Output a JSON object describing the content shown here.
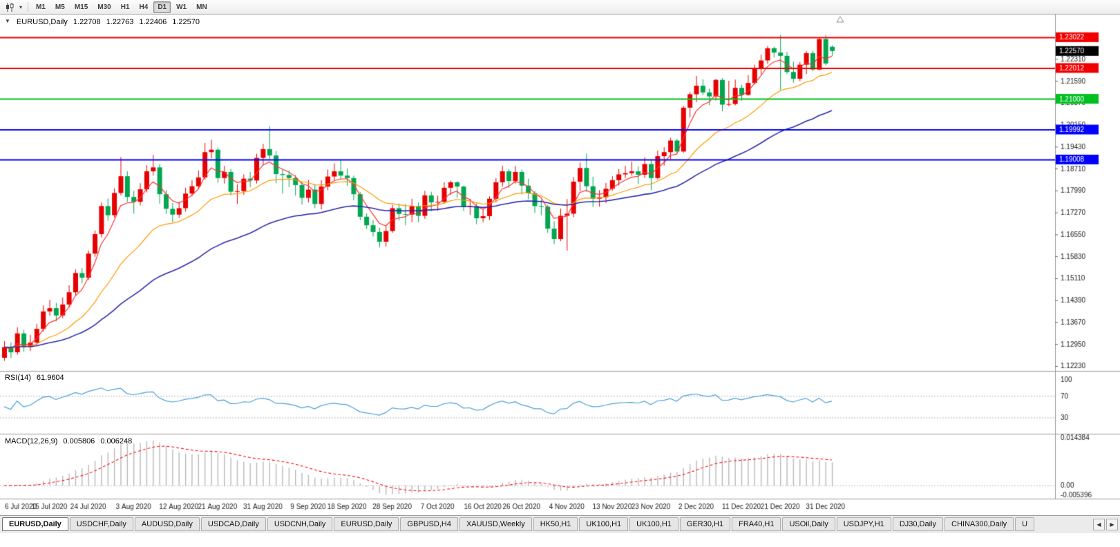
{
  "toolbar": {
    "timeframes": [
      "M1",
      "M5",
      "M15",
      "M30",
      "H1",
      "H4",
      "D1",
      "W1",
      "MN"
    ],
    "active_timeframe": "D1",
    "dropdown_caret": "▾"
  },
  "chart_header": {
    "collapse_icon": "▼",
    "symbol": "EURUSD,Daily",
    "open": "1.22708",
    "high": "1.22763",
    "low": "1.22406",
    "close": "1.22570"
  },
  "rsi_header": {
    "name": "RSI(14)",
    "value": "61.9604"
  },
  "macd_header": {
    "name": "MACD(12,26,9)",
    "value1": "0.005806",
    "value2": "0.006248"
  },
  "tab_bar": {
    "tabs": [
      "EURUSD,Daily",
      "USDCHF,Daily",
      "AUDUSD,Daily",
      "USDCAD,Daily",
      "USDCNH,Daily",
      "EURUSD,Daily",
      "GBPUSD,H4",
      "XAUUSD,Weekly",
      "HK50,H1",
      "UK100,H1",
      "UK100,H1",
      "GER30,H1",
      "FRA40,H1",
      "USOil,Daily",
      "USDJPY,H1",
      "DJ30,Daily",
      "CHINA300,Daily",
      "U"
    ],
    "active_tab_index": 0,
    "scroll_left": "◀",
    "scroll_right": "▶"
  },
  "chart_data": {
    "type": "candlestick",
    "symbol": "EURUSD",
    "timeframe": "Daily",
    "quote": {
      "open": 1.22708,
      "high": 1.22763,
      "low": 1.22406,
      "close": 1.2257
    },
    "current_price_label": "1.22570",
    "price_range": [
      1.1207,
      1.237
    ],
    "y_ticks": [
      "1.22310",
      "1.21590",
      "1.20870",
      "1.20150",
      "1.19430",
      "1.18710",
      "1.17990",
      "1.17270",
      "1.16550",
      "1.15830",
      "1.15110",
      "1.14390",
      "1.13670",
      "1.12950",
      "1.12230"
    ],
    "x_ticks": [
      "6 Jul 2020",
      "15 Jul 2020",
      "24 Jul 2020",
      "3 Aug 2020",
      "12 Aug 2020",
      "21 Aug 2020",
      "31 Aug 2020",
      "9 Sep 2020",
      "18 Sep 2020",
      "28 Sep 2020",
      "7 Oct 2020",
      "16 Oct 2020",
      "26 Oct 2020",
      "4 Nov 2020",
      "13 Nov 2020",
      "23 Nov 2020",
      "2 Dec 2020",
      "11 Dec 2020",
      "21 Dec 2020",
      "31 Dec 2020"
    ],
    "levels": [
      {
        "value": 1.23022,
        "label": "1.23022",
        "color": "#f20000"
      },
      {
        "value": 1.22012,
        "label": "1.22012",
        "color": "#f20000"
      },
      {
        "value": 1.21,
        "label": "1.21000",
        "color": "#00c020"
      },
      {
        "value": 1.19992,
        "label": "1.19992",
        "color": "#0000ff"
      },
      {
        "value": 1.19008,
        "label": "1.19008",
        "color": "#0000ff"
      }
    ],
    "candle_colors": {
      "up": "#e60000",
      "down": "#00a650"
    },
    "moving_averages": [
      {
        "period": 5,
        "color": "#ff3030"
      },
      {
        "period": 18,
        "color": "#ff9900"
      },
      {
        "period": 45,
        "color": "#2a2ab0"
      }
    ],
    "rsi": {
      "period": 14,
      "value": "61.9604",
      "levels": [
        "100",
        "70",
        "30"
      ],
      "dash_levels": [
        70,
        30
      ],
      "color": "#4aa0d8"
    },
    "macd": {
      "fast": 12,
      "slow": 26,
      "signal": 9,
      "axis_labels": [
        "0.014384",
        "0.00",
        "-0.005396"
      ],
      "histogram_color": "#b8b8b8",
      "signal_color": "#ff1010"
    },
    "candles": [
      [
        1.125,
        1.1305,
        1.124,
        1.1285
      ],
      [
        1.1285,
        1.13,
        1.1249,
        1.1268
      ],
      [
        1.1268,
        1.135,
        1.126,
        1.133
      ],
      [
        1.133,
        1.1342,
        1.127,
        1.1285
      ],
      [
        1.1285,
        1.1325,
        1.1272,
        1.13
      ],
      [
        1.13,
        1.1362,
        1.129,
        1.1345
      ],
      [
        1.1345,
        1.1422,
        1.1336,
        1.1402
      ],
      [
        1.1402,
        1.144,
        1.1388,
        1.1413
      ],
      [
        1.1413,
        1.143,
        1.137,
        1.1389
      ],
      [
        1.1389,
        1.1448,
        1.138,
        1.1425
      ],
      [
        1.1425,
        1.1488,
        1.1415,
        1.1465
      ],
      [
        1.1465,
        1.154,
        1.1455,
        1.1528
      ],
      [
        1.1528,
        1.1545,
        1.1495,
        1.1513
      ],
      [
        1.1513,
        1.1602,
        1.1505,
        1.1592
      ],
      [
        1.1592,
        1.1668,
        1.1581,
        1.1656
      ],
      [
        1.1656,
        1.176,
        1.1645,
        1.1748
      ],
      [
        1.1748,
        1.1773,
        1.17,
        1.1718
      ],
      [
        1.1718,
        1.1806,
        1.171,
        1.1791
      ],
      [
        1.1791,
        1.1909,
        1.1783,
        1.1846
      ],
      [
        1.1846,
        1.1862,
        1.1762,
        1.1778
      ],
      [
        1.1778,
        1.1798,
        1.1723,
        1.1762
      ],
      [
        1.1762,
        1.1823,
        1.175,
        1.1803
      ],
      [
        1.1803,
        1.1882,
        1.1793,
        1.1862
      ],
      [
        1.1862,
        1.1916,
        1.1848,
        1.1875
      ],
      [
        1.1875,
        1.1886,
        1.1756,
        1.1787
      ],
      [
        1.1787,
        1.18,
        1.1723,
        1.1739
      ],
      [
        1.1739,
        1.1758,
        1.1695,
        1.172
      ],
      [
        1.172,
        1.1762,
        1.171,
        1.1741
      ],
      [
        1.1741,
        1.1808,
        1.173,
        1.1789
      ],
      [
        1.1789,
        1.1833,
        1.178,
        1.1813
      ],
      [
        1.1813,
        1.1865,
        1.1803,
        1.1842
      ],
      [
        1.1842,
        1.1955,
        1.1835,
        1.1925
      ],
      [
        1.1925,
        1.1966,
        1.1905,
        1.1933
      ],
      [
        1.1933,
        1.194,
        1.1825,
        1.184
      ],
      [
        1.184,
        1.188,
        1.1822,
        1.186
      ],
      [
        1.186,
        1.187,
        1.1783,
        1.1795
      ],
      [
        1.1795,
        1.182,
        1.1755,
        1.1797
      ],
      [
        1.1797,
        1.1852,
        1.1785,
        1.1838
      ],
      [
        1.1838,
        1.186,
        1.181,
        1.1832
      ],
      [
        1.1832,
        1.192,
        1.1822,
        1.1906
      ],
      [
        1.1906,
        1.1952,
        1.1883,
        1.1935
      ],
      [
        1.1935,
        1.2011,
        1.1902,
        1.1914
      ],
      [
        1.1914,
        1.1928,
        1.1823,
        1.1853
      ],
      [
        1.1853,
        1.1868,
        1.1789,
        1.185
      ],
      [
        1.185,
        1.1865,
        1.181,
        1.184
      ],
      [
        1.184,
        1.185,
        1.1782,
        1.1817
      ],
      [
        1.1817,
        1.1828,
        1.1753,
        1.1775
      ],
      [
        1.1775,
        1.1834,
        1.176,
        1.1802
      ],
      [
        1.1802,
        1.182,
        1.1741,
        1.1755
      ],
      [
        1.1755,
        1.1833,
        1.1737,
        1.1812
      ],
      [
        1.1812,
        1.1868,
        1.18,
        1.1845
      ],
      [
        1.1845,
        1.1888,
        1.1832,
        1.1862
      ],
      [
        1.1862,
        1.19,
        1.1835,
        1.1848
      ],
      [
        1.1848,
        1.1872,
        1.1814,
        1.184
      ],
      [
        1.184,
        1.1848,
        1.1767,
        1.1787
      ],
      [
        1.1787,
        1.1794,
        1.1702,
        1.1713
      ],
      [
        1.1713,
        1.1724,
        1.1672,
        1.1685
      ],
      [
        1.1685,
        1.1702,
        1.1648,
        1.1663
      ],
      [
        1.1663,
        1.1677,
        1.1612,
        1.1631
      ],
      [
        1.1631,
        1.1682,
        1.1615,
        1.1666
      ],
      [
        1.1666,
        1.1752,
        1.166,
        1.1741
      ],
      [
        1.1741,
        1.1756,
        1.17,
        1.1722
      ],
      [
        1.1722,
        1.1755,
        1.1685,
        1.172
      ],
      [
        1.172,
        1.1772,
        1.1695,
        1.1748
      ],
      [
        1.1748,
        1.176,
        1.1695,
        1.1716
      ],
      [
        1.1716,
        1.1798,
        1.1706,
        1.1783
      ],
      [
        1.1783,
        1.1795,
        1.1731,
        1.176
      ],
      [
        1.176,
        1.1782,
        1.1733,
        1.1762
      ],
      [
        1.1762,
        1.1826,
        1.1755,
        1.1808
      ],
      [
        1.1808,
        1.1831,
        1.1785,
        1.1826
      ],
      [
        1.1826,
        1.183,
        1.1775,
        1.1812
      ],
      [
        1.1812,
        1.1815,
        1.1732,
        1.1745
      ],
      [
        1.1745,
        1.1772,
        1.1719,
        1.1748
      ],
      [
        1.1748,
        1.1757,
        1.1688,
        1.1708
      ],
      [
        1.1708,
        1.1737,
        1.1695,
        1.1715
      ],
      [
        1.1715,
        1.178,
        1.1702,
        1.1772
      ],
      [
        1.1772,
        1.184,
        1.176,
        1.1826
      ],
      [
        1.1826,
        1.188,
        1.1812,
        1.1862
      ],
      [
        1.1862,
        1.187,
        1.1808,
        1.183
      ],
      [
        1.183,
        1.188,
        1.1822,
        1.186
      ],
      [
        1.186,
        1.1868,
        1.1786,
        1.1815
      ],
      [
        1.1815,
        1.1838,
        1.177,
        1.179
      ],
      [
        1.179,
        1.1798,
        1.1726,
        1.1748
      ],
      [
        1.1748,
        1.177,
        1.1718,
        1.1746
      ],
      [
        1.1746,
        1.1752,
        1.166,
        1.1674
      ],
      [
        1.1674,
        1.1698,
        1.1623,
        1.164
      ],
      [
        1.164,
        1.174,
        1.1633,
        1.1716
      ],
      [
        1.1716,
        1.1771,
        1.1602,
        1.1723
      ],
      [
        1.1723,
        1.1843,
        1.1712,
        1.1828
      ],
      [
        1.1828,
        1.1891,
        1.1797,
        1.1873
      ],
      [
        1.1873,
        1.192,
        1.1795,
        1.1813
      ],
      [
        1.1813,
        1.1844,
        1.1745,
        1.1772
      ],
      [
        1.1772,
        1.18,
        1.1746,
        1.1777
      ],
      [
        1.1777,
        1.1824,
        1.1758,
        1.1805
      ],
      [
        1.1805,
        1.1846,
        1.1798,
        1.1833
      ],
      [
        1.1833,
        1.187,
        1.1815,
        1.1852
      ],
      [
        1.1852,
        1.188,
        1.184,
        1.1856
      ],
      [
        1.1856,
        1.1894,
        1.1848,
        1.1862
      ],
      [
        1.1862,
        1.1878,
        1.182,
        1.1851
      ],
      [
        1.1851,
        1.1908,
        1.184,
        1.1886
      ],
      [
        1.1886,
        1.1898,
        1.18,
        1.184
      ],
      [
        1.184,
        1.193,
        1.1836,
        1.1912
      ],
      [
        1.1912,
        1.1941,
        1.1881,
        1.1925
      ],
      [
        1.1925,
        1.1972,
        1.1902,
        1.1963
      ],
      [
        1.1963,
        1.1968,
        1.1922,
        1.1927
      ],
      [
        1.1927,
        1.2076,
        1.1923,
        1.2071
      ],
      [
        1.2071,
        1.2122,
        1.204,
        1.2115
      ],
      [
        1.2115,
        1.2175,
        1.2089,
        1.2143
      ],
      [
        1.2143,
        1.2164,
        1.2112,
        1.2121
      ],
      [
        1.2121,
        1.2134,
        1.2079,
        1.2108
      ],
      [
        1.2108,
        1.2166,
        1.2094,
        1.2162
      ],
      [
        1.2162,
        1.2168,
        1.2059,
        1.2081
      ],
      [
        1.2081,
        1.2159,
        1.2076,
        1.2083
      ],
      [
        1.2083,
        1.2163,
        1.2078,
        1.2136
      ],
      [
        1.2136,
        1.2146,
        1.2094,
        1.2113
      ],
      [
        1.2113,
        1.2178,
        1.211,
        1.2152
      ],
      [
        1.2152,
        1.2212,
        1.2147,
        1.22
      ],
      [
        1.22,
        1.2245,
        1.218,
        1.2226
      ],
      [
        1.2226,
        1.2273,
        1.2215,
        1.2266
      ],
      [
        1.2266,
        1.2271,
        1.2236,
        1.2252
      ],
      [
        1.2252,
        1.231,
        1.2129,
        1.2241
      ],
      [
        1.2241,
        1.2254,
        1.2181,
        1.2188
      ],
      [
        1.2188,
        1.2222,
        1.2153,
        1.2166
      ],
      [
        1.2166,
        1.2221,
        1.2158,
        1.2212
      ],
      [
        1.2212,
        1.2256,
        1.2181,
        1.225
      ],
      [
        1.225,
        1.2258,
        1.2191,
        1.2196
      ],
      [
        1.2196,
        1.2302,
        1.2193,
        1.2296
      ],
      [
        1.2296,
        1.231,
        1.221,
        1.2216
      ],
      [
        1.22708,
        1.22763,
        1.22406,
        1.2257
      ]
    ]
  }
}
